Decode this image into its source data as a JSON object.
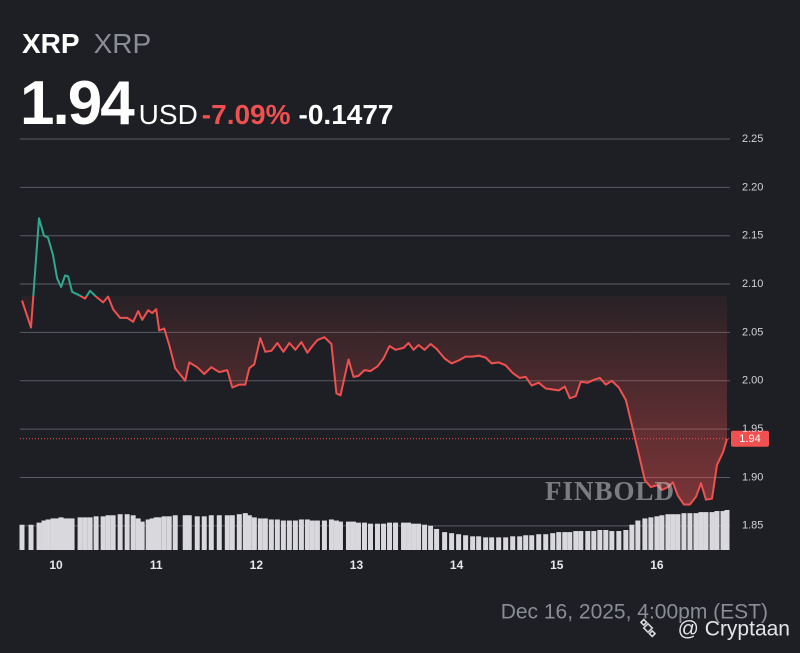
{
  "header": {
    "symbol": "XRP",
    "name": "XRP",
    "price": "1.94",
    "currency": "USD",
    "change_pct": "-7.09%",
    "change": "-0.1477"
  },
  "chart_data": {
    "type": "line",
    "x": [
      9.66,
      9.75,
      9.83,
      9.88,
      9.92,
      9.97,
      10.01,
      10.05,
      10.09,
      10.12,
      10.16,
      10.24,
      10.29,
      10.34,
      10.4,
      10.47,
      10.52,
      10.57,
      10.64,
      10.71,
      10.77,
      10.82,
      10.86,
      10.92,
      10.96,
      11.0,
      11.03,
      11.08,
      11.13,
      11.19,
      11.29,
      11.33,
      11.41,
      11.48,
      11.55,
      11.63,
      11.71,
      11.76,
      11.83,
      11.89,
      11.93,
      11.98,
      12.04,
      12.09,
      12.15,
      12.21,
      12.27,
      12.33,
      12.39,
      12.45,
      12.51,
      12.56,
      12.61,
      12.68,
      12.75,
      12.8,
      12.84,
      12.92,
      12.97,
      13.02,
      13.08,
      13.14,
      13.21,
      13.27,
      13.33,
      13.39,
      13.47,
      13.52,
      13.57,
      13.62,
      13.68,
      13.74,
      13.8,
      13.88,
      13.95,
      14.02,
      14.09,
      14.16,
      14.22,
      14.29,
      14.35,
      14.42,
      14.49,
      14.56,
      14.63,
      14.69,
      14.75,
      14.82,
      14.89,
      14.96,
      15.02,
      15.08,
      15.13,
      15.19,
      15.24,
      15.31,
      15.37,
      15.43,
      15.49,
      15.55,
      15.62,
      15.69,
      15.75,
      15.81,
      15.88,
      15.94,
      16.0,
      16.05,
      16.11,
      16.16,
      16.21,
      16.27,
      16.33,
      16.39,
      16.44,
      16.49,
      16.55,
      16.6,
      16.66,
      16.7
    ],
    "series": [
      {
        "name": "XRP",
        "values": [
          2.083,
          2.055,
          2.168,
          2.15,
          2.148,
          2.13,
          2.106,
          2.097,
          2.109,
          2.108,
          2.092,
          2.088,
          2.085,
          2.093,
          2.087,
          2.081,
          2.087,
          2.074,
          2.065,
          2.065,
          2.061,
          2.072,
          2.063,
          2.073,
          2.07,
          2.074,
          2.052,
          2.054,
          2.037,
          2.013,
          2.0,
          2.019,
          2.014,
          2.007,
          2.014,
          2.009,
          2.011,
          1.993,
          1.996,
          1.996,
          2.013,
          2.017,
          2.044,
          2.03,
          2.031,
          2.039,
          2.03,
          2.039,
          2.032,
          2.04,
          2.029,
          2.036,
          2.042,
          2.045,
          2.038,
          1.987,
          1.985,
          2.022,
          2.004,
          2.005,
          2.011,
          2.01,
          2.015,
          2.023,
          2.036,
          2.032,
          2.034,
          2.039,
          2.032,
          2.037,
          2.032,
          2.038,
          2.033,
          2.023,
          2.018,
          2.021,
          2.025,
          2.025,
          2.026,
          2.024,
          2.018,
          2.019,
          2.016,
          2.008,
          2.003,
          2.004,
          1.995,
          1.998,
          1.992,
          1.991,
          1.99,
          1.994,
          1.982,
          1.984,
          1.999,
          1.998,
          2.001,
          2.003,
          1.996,
          2.0,
          1.993,
          1.98,
          1.954,
          1.928,
          1.897,
          1.89,
          1.892,
          1.887,
          1.89,
          1.895,
          1.881,
          1.872,
          1.872,
          1.88,
          1.894,
          1.877,
          1.878,
          1.913,
          1.926,
          1.94
        ]
      }
    ],
    "volume": [
      24,
      24,
      26,
      28,
      29,
      30,
      30,
      31,
      30,
      30,
      30,
      31,
      31,
      31,
      32,
      32,
      33,
      33,
      34,
      34,
      33,
      30,
      27,
      29,
      30,
      31,
      31,
      32,
      32,
      33,
      33,
      33,
      32,
      32,
      33,
      33,
      33,
      33,
      34,
      35,
      33,
      31,
      30,
      30,
      29,
      29,
      28,
      28,
      28,
      29,
      29,
      28,
      28,
      28,
      29,
      28,
      27,
      27,
      27,
      26,
      26,
      25,
      25,
      25,
      26,
      26,
      26,
      26,
      25,
      25,
      24,
      23,
      20,
      17,
      16,
      15,
      14,
      13,
      13,
      12,
      12,
      12,
      12,
      13,
      13,
      14,
      14,
      15,
      15,
      16,
      17,
      17,
      17,
      18,
      18,
      18,
      18,
      19,
      19,
      18,
      18,
      19,
      24,
      28,
      30,
      31,
      32,
      33,
      34,
      34,
      34,
      35,
      35,
      35,
      36,
      36,
      36,
      37,
      37,
      38
    ],
    "xlim": [
      9.64,
      16.73
    ],
    "xticks": [
      10,
      11,
      12,
      13,
      14,
      15,
      16
    ],
    "ylim": [
      1.825,
      2.25
    ],
    "yticks": [
      {
        "value": 1.85,
        "label": "1.85"
      },
      {
        "value": 1.9,
        "label": "1.90"
      },
      1.95,
      {
        "value": 2.0,
        "label": "2.00"
      },
      2.05,
      {
        "value": 2.1,
        "label": "2.10"
      },
      2.15,
      {
        "value": 2.2,
        "label": "2.20"
      },
      2.25
    ],
    "baseline": 2.0877,
    "up_color": "#2fa88f",
    "down_color": "#f0504f",
    "grid": true,
    "footer": "Dec 16, 2025, 4:00pm (EST)"
  },
  "watermarks": {
    "brand": "FINBOLD",
    "credit": "@ Cryptaan"
  }
}
